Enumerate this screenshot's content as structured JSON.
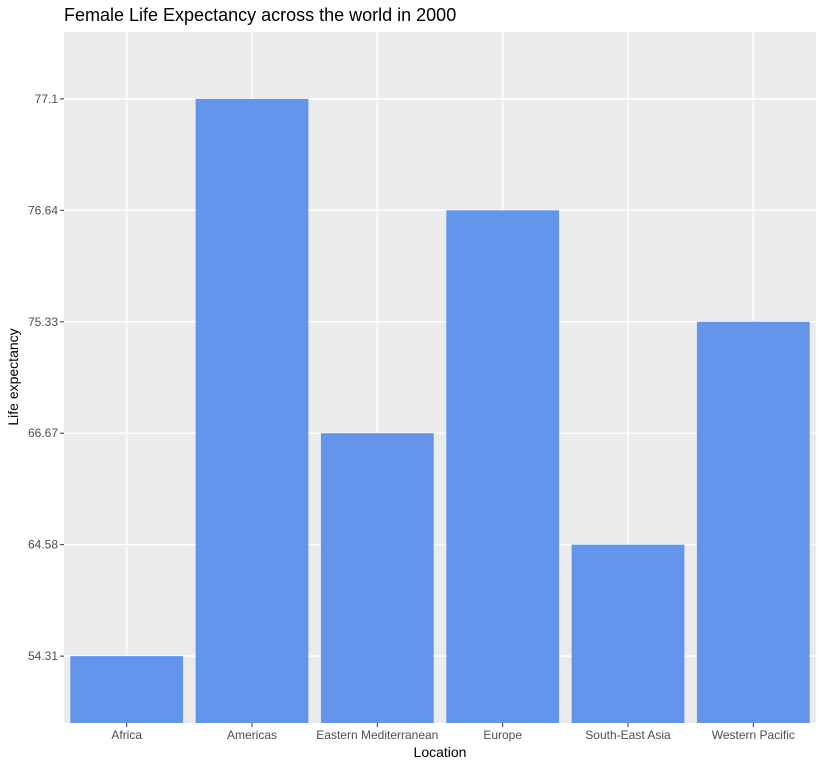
{
  "chart_data": {
    "type": "bar",
    "title": "Female Life Expectancy across the world in 2000",
    "xlabel": "Location",
    "ylabel": "Life expectancy",
    "categories": [
      "Africa",
      "Americas",
      "Eastern Mediterranean",
      "Europe",
      "South-East Asia",
      "Western Pacific"
    ],
    "values": [
      "54.31",
      "77.1",
      "66.67",
      "76.64",
      "64.58",
      "75.33"
    ],
    "y_axis_kind": "discrete",
    "y_tick_labels": [
      "54.31",
      "64.58",
      "66.67",
      "75.33",
      "76.64",
      "77.1"
    ],
    "grid": true,
    "legend": "none",
    "colors": {
      "bar": "#6495ED",
      "panel_background": "#EBEBEB",
      "grid": "#FFFFFF",
      "tick_text": "#4D4D4D",
      "tick_mark": "#333333"
    }
  }
}
